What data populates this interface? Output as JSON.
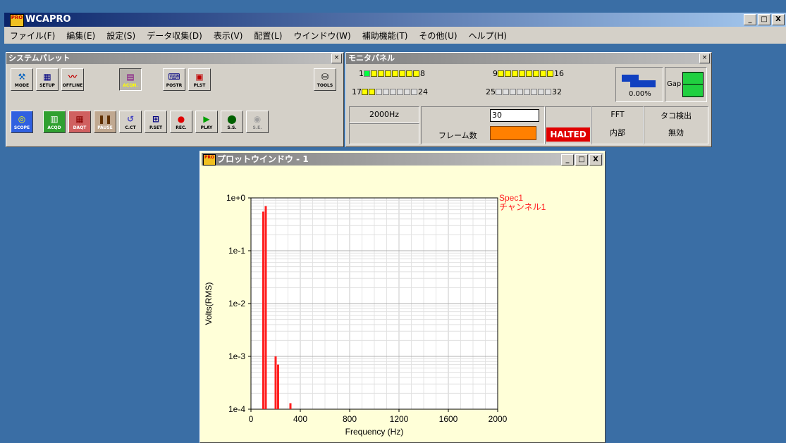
{
  "app": {
    "title": "WCAPRO",
    "icon_text": "PRO"
  },
  "window_controls": {
    "min": "_",
    "max": "□",
    "close": "X"
  },
  "menu": [
    "ファイル(F)",
    "編集(E)",
    "設定(S)",
    "データ収集(D)",
    "表示(V)",
    "配置(L)",
    "ウインドウ(W)",
    "補助機能(T)",
    "その他(U)",
    "ヘルプ(H)"
  ],
  "palette": {
    "title": "システムパレット",
    "row1": [
      "MODE",
      "SETUP",
      "OFFLINE",
      "ACQN.",
      "POSTR",
      "PLST",
      "TOOLS"
    ],
    "row2": [
      "SCOPE",
      "ACQD",
      "DAQT",
      "PAUSE",
      "C.CT",
      "P.SET",
      "REC.",
      "PLAY",
      "S.S.",
      "S.E."
    ]
  },
  "monitor": {
    "title": "モニタパネル",
    "ch_1": "1",
    "ch_8": "8",
    "ch_9": "9",
    "ch_16": "16",
    "ch_17": "17",
    "ch_24": "24",
    "ch_25": "25",
    "ch_32": "32",
    "percent": "0.00%",
    "gap": "Gap",
    "freq": "2000Hz",
    "frame_value": "30",
    "frame_label": "フレーム数",
    "status": "HALTED",
    "fft": "FFT",
    "fft_mode": "内部",
    "tacho": "タコ検出",
    "tacho_state": "無効"
  },
  "plot": {
    "title": "プロットウインドウ - 1",
    "icon_text": "PRO"
  },
  "chart_data": {
    "type": "bar",
    "xlabel": "Frequency (Hz)",
    "ylabel": "Volts(RMS)",
    "xlim": [
      0,
      2000
    ],
    "ylim": [
      0.0001,
      1
    ],
    "yscale": "log",
    "grid": true,
    "xticks": [
      "0",
      "400",
      "800",
      "1200",
      "1600",
      "2000"
    ],
    "yticks": [
      "1e-4",
      "1e-3",
      "1e-2",
      "1e-1",
      "1e+0"
    ],
    "legend": [
      "Spec1",
      "チャンネル1"
    ],
    "legend_placement": "top-right",
    "color": "#ff2020",
    "x": [
      100,
      120,
      200,
      220,
      320
    ],
    "values": [
      0.55,
      0.7,
      0.001,
      0.0007,
      0.00013
    ]
  }
}
